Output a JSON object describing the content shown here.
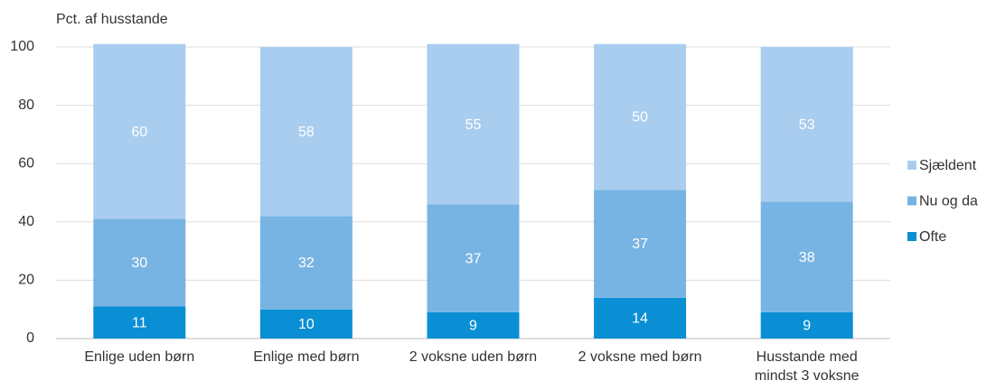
{
  "chart_data": {
    "type": "stacked-bar",
    "y_label": "Pct. af husstande",
    "categories": [
      "Enlige uden børn",
      "Enlige med børn",
      "2 voksne uden børn",
      "2 voksne med børn",
      "Husstande med mindst 3 voksne"
    ],
    "series": [
      {
        "name": "Ofte",
        "color": "#0a8fd4",
        "values": [
          11,
          10,
          9,
          14,
          9
        ]
      },
      {
        "name": "Nu og da",
        "color": "#78b4e3",
        "values": [
          30,
          32,
          37,
          37,
          38
        ]
      },
      {
        "name": "Sjældent",
        "color": "#a9cdef",
        "values": [
          60,
          58,
          55,
          50,
          53
        ]
      }
    ],
    "ylim": [
      0,
      100
    ],
    "yticks": [
      0,
      20,
      40,
      60,
      80,
      100
    ],
    "grid": true,
    "legend": "right"
  }
}
